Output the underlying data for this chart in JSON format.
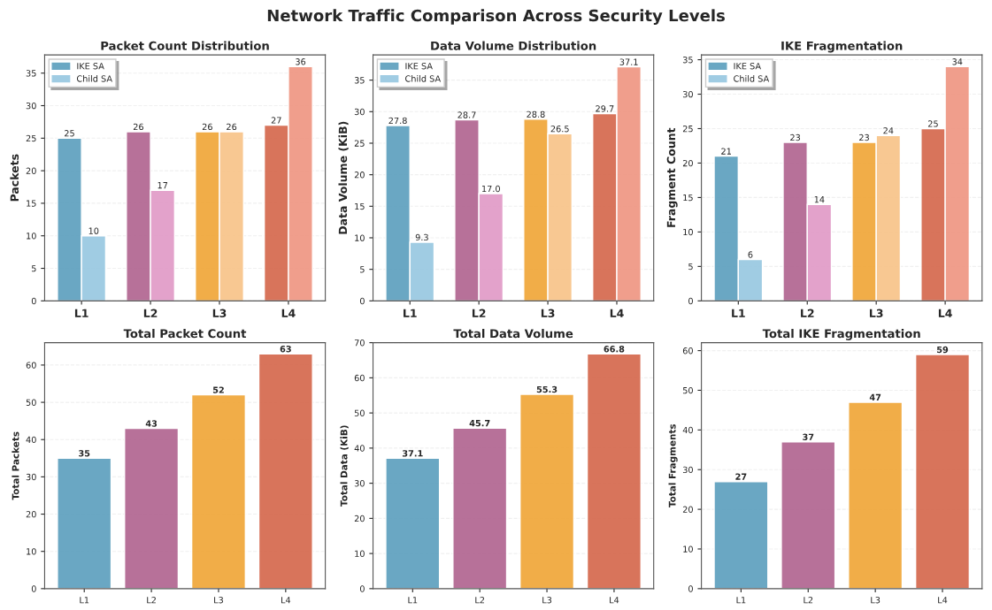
{
  "chart_data": [
    {
      "type": "bar",
      "title": "Packet Count Distribution",
      "ylabel": "Packets",
      "categories": [
        "L1",
        "L2",
        "L3",
        "L4"
      ],
      "annotations": [
        "Network Traffic Comparison Across Security Levels"
      ],
      "ylim": [
        0,
        37.8
      ],
      "yticks": [
        0,
        5,
        10,
        15,
        20,
        25,
        30,
        35
      ],
      "grid": "y",
      "legend": "top left",
      "series": [
        {
          "name": "IKE SA",
          "color": "#5a9ebd",
          "colors": [
            "#5a9ebd",
            "#b0628e",
            "#f0a535",
            "#d4654a"
          ],
          "values": [
            25,
            26,
            26,
            27
          ],
          "value_labels": [
            "25",
            "26",
            "26",
            "27"
          ]
        },
        {
          "name": "Child SA",
          "color": "#96c7e0",
          "colors": [
            "#96c7e0",
            "#e098c6",
            "#f8c387",
            "#ef9480"
          ],
          "values": [
            10,
            17,
            26,
            36
          ],
          "value_labels": [
            "10",
            "17",
            "26",
            "36"
          ]
        }
      ]
    },
    {
      "type": "bar",
      "title": "Data Volume Distribution",
      "ylabel": "Data Volume (KiB)",
      "categories": [
        "L1",
        "L2",
        "L3",
        "L4"
      ],
      "ylim": [
        0,
        39
      ],
      "yticks": [
        0,
        5,
        10,
        15,
        20,
        25,
        30,
        35
      ],
      "grid": "y",
      "legend": "top left",
      "series": [
        {
          "name": "IKE SA",
          "color": "#5a9ebd",
          "colors": [
            "#5a9ebd",
            "#b0628e",
            "#f0a535",
            "#d4654a"
          ],
          "values": [
            27.8,
            28.7,
            28.8,
            29.7
          ],
          "value_labels": [
            "27.8",
            "28.7",
            "28.8",
            "29.7"
          ]
        },
        {
          "name": "Child SA",
          "color": "#96c7e0",
          "colors": [
            "#96c7e0",
            "#e098c6",
            "#f8c387",
            "#ef9480"
          ],
          "values": [
            9.3,
            17.0,
            26.5,
            37.1
          ],
          "value_labels": [
            "9.3",
            "17.0",
            "26.5",
            "37.1"
          ]
        }
      ]
    },
    {
      "type": "bar",
      "title": "IKE Fragmentation",
      "ylabel": "Fragment Count",
      "categories": [
        "L1",
        "L2",
        "L3",
        "L4"
      ],
      "ylim": [
        0,
        35.7
      ],
      "yticks": [
        0,
        5,
        10,
        15,
        20,
        25,
        30,
        35
      ],
      "grid": "y",
      "legend": "top left",
      "series": [
        {
          "name": "IKE SA",
          "color": "#5a9ebd",
          "colors": [
            "#5a9ebd",
            "#b0628e",
            "#f0a535",
            "#d4654a"
          ],
          "values": [
            21,
            23,
            23,
            25
          ],
          "value_labels": [
            "21",
            "23",
            "23",
            "25"
          ]
        },
        {
          "name": "Child SA",
          "color": "#96c7e0",
          "colors": [
            "#96c7e0",
            "#e098c6",
            "#f8c387",
            "#ef9480"
          ],
          "values": [
            6,
            14,
            24,
            34
          ],
          "value_labels": [
            "6",
            "14",
            "24",
            "34"
          ]
        }
      ]
    },
    {
      "type": "bar",
      "title": "Total Packet Count",
      "ylabel": "Total Packets",
      "categories": [
        "L1",
        "L2",
        "L3",
        "L4"
      ],
      "ylim": [
        0,
        66
      ],
      "yticks": [
        0,
        10,
        20,
        30,
        40,
        50,
        60
      ],
      "grid": "y",
      "colors": [
        "#5a9ebd",
        "#b0628e",
        "#f0a535",
        "#d4654a"
      ],
      "values": [
        35,
        43,
        52,
        63
      ],
      "value_labels": [
        "35",
        "43",
        "52",
        "63"
      ]
    },
    {
      "type": "bar",
      "title": "Total Data Volume",
      "ylabel": "Total Data (KiB)",
      "categories": [
        "L1",
        "L2",
        "L3",
        "L4"
      ],
      "ylim": [
        0,
        70
      ],
      "yticks": [
        0,
        10,
        20,
        30,
        40,
        50,
        60,
        70
      ],
      "grid": "y",
      "colors": [
        "#5a9ebd",
        "#b0628e",
        "#f0a535",
        "#d4654a"
      ],
      "values": [
        37.1,
        45.7,
        55.3,
        66.8
      ],
      "value_labels": [
        "37.1",
        "45.7",
        "55.3",
        "66.8"
      ]
    },
    {
      "type": "bar",
      "title": "Total IKE Fragmentation",
      "ylabel": "Total Fragments",
      "categories": [
        "L1",
        "L2",
        "L3",
        "L4"
      ],
      "ylim": [
        0,
        62
      ],
      "yticks": [
        0,
        10,
        20,
        30,
        40,
        50,
        60
      ],
      "grid": "y",
      "colors": [
        "#5a9ebd",
        "#b0628e",
        "#f0a535",
        "#d4654a"
      ],
      "values": [
        27,
        37,
        47,
        59
      ],
      "value_labels": [
        "27",
        "37",
        "47",
        "59"
      ]
    }
  ]
}
